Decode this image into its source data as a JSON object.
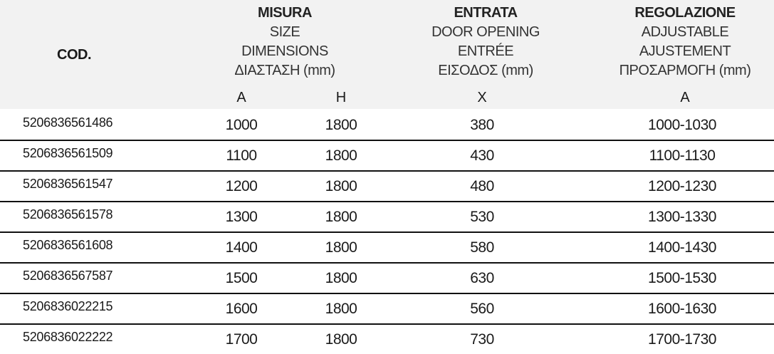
{
  "header": {
    "cod": "COD.",
    "size_group": [
      "MISURA",
      "SIZE",
      "DIMENSIONS",
      "ΔΙΑΣΤΑΣΗ (mm)"
    ],
    "opening_group": [
      "ENTRATA",
      "DOOR OPENING",
      "ENTRÉE",
      "ΕΙΣΟΔΟΣ (mm)"
    ],
    "adjust_group": [
      "REGOLAZIONE",
      "ADJUSTABLE",
      "AJUSTEMENT",
      "ΠΡΟΣΑΡΜΟΓΗ (mm)"
    ],
    "sub": {
      "a": "A",
      "h": "H",
      "x": "X",
      "adj": "A"
    }
  },
  "rows": [
    {
      "code": "5206836561486",
      "a": "1000",
      "h": "1800",
      "x": "380",
      "adj": "1000-1030"
    },
    {
      "code": "5206836561509",
      "a": "1100",
      "h": "1800",
      "x": "430",
      "adj": "1100-1130"
    },
    {
      "code": "5206836561547",
      "a": "1200",
      "h": "1800",
      "x": "480",
      "adj": "1200-1230"
    },
    {
      "code": "5206836561578",
      "a": "1300",
      "h": "1800",
      "x": "530",
      "adj": "1300-1330"
    },
    {
      "code": "5206836561608",
      "a": "1400",
      "h": "1800",
      "x": "580",
      "adj": "1400-1430"
    },
    {
      "code": "5206836567587",
      "a": "1500",
      "h": "1800",
      "x": "630",
      "adj": "1500-1530"
    },
    {
      "code": "5206836022215",
      "a": "1600",
      "h": "1800",
      "x": "560",
      "adj": "1600-1630"
    },
    {
      "code": "5206836022222",
      "a": "1700",
      "h": "1800",
      "x": "730",
      "adj": "1700-1730"
    }
  ]
}
